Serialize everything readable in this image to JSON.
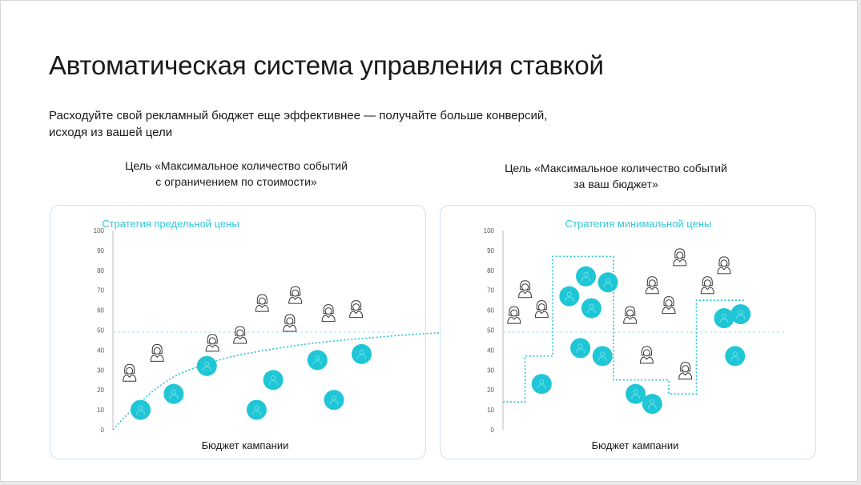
{
  "title": "Автоматическая система управления ставкой",
  "subtitle_lines": [
    "Расходуйте свой рекламный бюджет еще эффективнее — получайте больше конверсий,",
    "исходя из вашей цели"
  ],
  "colors": {
    "accent": "#1fc6d6",
    "teal_text": "#33c7d9",
    "panel_border": "#cfe1f2",
    "icon_stroke": "#333333"
  },
  "icons": {
    "person": "person-outline-icon",
    "conversion": "teal-circle-person-icon"
  },
  "chart_data": [
    {
      "type": "scatter",
      "goal_lines": [
        "Цель «Максимальное количество событий",
        "с ограничением по стоимости»"
      ],
      "strategy": "Стратегия предельной цены",
      "xlabel": "Бюджет кампании",
      "ylabel": "",
      "ylim": [
        0,
        100
      ],
      "yticks": [
        "0",
        "10",
        "20",
        "30",
        "40",
        "50",
        "60",
        "70",
        "80",
        "90",
        "100"
      ],
      "threshold": 49,
      "curve": [
        [
          0,
          0
        ],
        [
          2,
          6
        ],
        [
          5,
          14
        ],
        [
          8,
          21
        ],
        [
          12,
          28
        ],
        [
          17,
          33
        ],
        [
          22,
          37
        ],
        [
          30,
          41
        ],
        [
          38,
          44
        ],
        [
          46,
          46
        ],
        [
          55,
          48
        ],
        [
          62,
          49
        ]
      ],
      "series": [
        {
          "kind": "conversion",
          "points": [
            [
              5,
              10
            ],
            [
              11,
              18
            ],
            [
              17,
              32
            ],
            [
              26,
              10
            ],
            [
              29,
              25
            ],
            [
              37,
              35
            ],
            [
              40,
              15
            ],
            [
              45,
              38
            ]
          ]
        },
        {
          "kind": "person",
          "points": [
            [
              3,
              28
            ],
            [
              8,
              38
            ],
            [
              18,
              43
            ],
            [
              23,
              47
            ],
            [
              27,
              63
            ],
            [
              32,
              53
            ],
            [
              33,
              67
            ],
            [
              39,
              58
            ],
            [
              44,
              60
            ]
          ]
        }
      ]
    },
    {
      "type": "scatter",
      "goal_lines": [
        "Цель «Максимальное количество событий",
        "за ваш бюджет»"
      ],
      "strategy": "Стратегия минимальной цены",
      "xlabel": "Бюджет кампании",
      "ylabel": "",
      "ylim": [
        0,
        100
      ],
      "yticks": [
        "0",
        "10",
        "20",
        "30",
        "40",
        "50",
        "60",
        "70",
        "80",
        "90",
        "100"
      ],
      "threshold": 49,
      "step_line": [
        [
          0,
          14
        ],
        [
          4,
          14
        ],
        [
          4,
          37
        ],
        [
          9,
          37
        ],
        [
          9,
          87
        ],
        [
          20,
          87
        ],
        [
          20,
          25
        ],
        [
          30,
          25
        ],
        [
          30,
          18
        ],
        [
          35,
          18
        ],
        [
          35,
          65
        ],
        [
          44,
          65
        ]
      ],
      "series": [
        {
          "kind": "conversion",
          "points": [
            [
              7,
              23
            ],
            [
              12,
              67
            ],
            [
              14,
              41
            ],
            [
              15,
              77
            ],
            [
              16,
              61
            ],
            [
              18,
              37
            ],
            [
              19,
              74
            ],
            [
              24,
              18
            ],
            [
              27,
              13
            ],
            [
              40,
              56
            ],
            [
              42,
              37
            ],
            [
              43,
              58
            ]
          ]
        },
        {
          "kind": "person",
          "points": [
            [
              2,
              57
            ],
            [
              4,
              70
            ],
            [
              7,
              60
            ],
            [
              23,
              57
            ],
            [
              26,
              37
            ],
            [
              27,
              72
            ],
            [
              30,
              62
            ],
            [
              32,
              86
            ],
            [
              33,
              29
            ],
            [
              37,
              72
            ],
            [
              40,
              82
            ]
          ]
        }
      ]
    }
  ]
}
